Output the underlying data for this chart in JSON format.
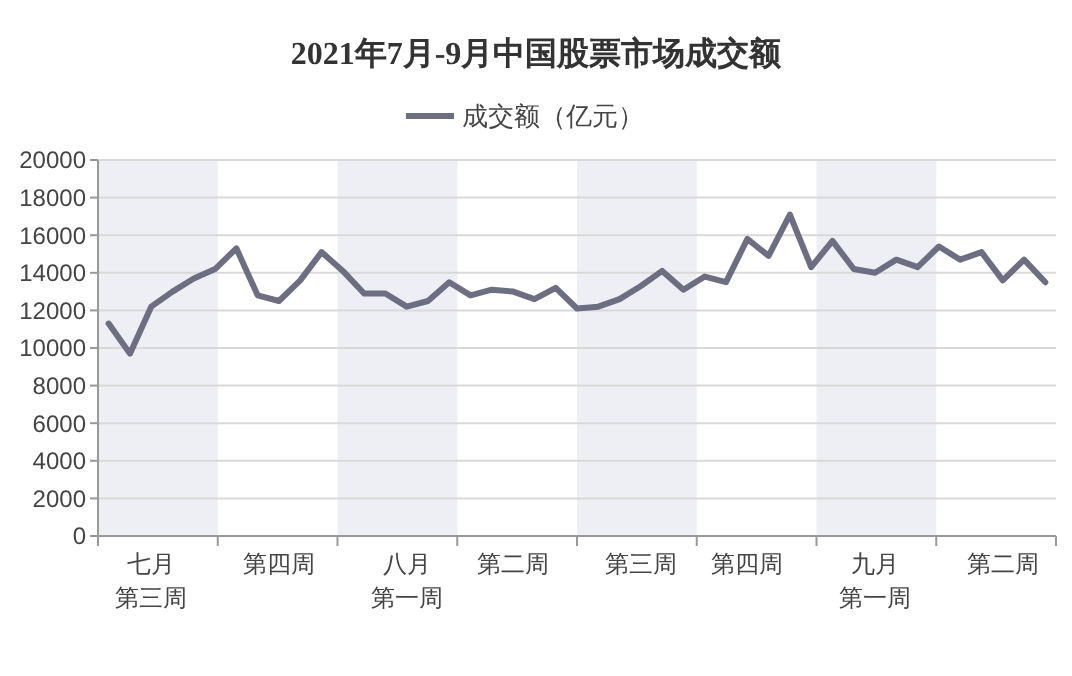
{
  "chart_data": {
    "type": "line",
    "title": "2021年7月-9月中国股票市场成交额",
    "legend": "top",
    "grid": "y",
    "marker": "none",
    "line_style": "solid",
    "categories": [
      null,
      null,
      "七月第三周",
      null,
      null,
      null,
      null,
      null,
      "第四周",
      null,
      null,
      null,
      null,
      null,
      "八月第一周",
      null,
      null,
      null,
      null,
      "第二周",
      null,
      null,
      null,
      null,
      null,
      "第三周",
      null,
      null,
      null,
      null,
      "第四周",
      null,
      null,
      null,
      null,
      null,
      "九月第一周",
      null,
      null,
      null,
      null,
      null,
      "第二周",
      null,
      null
    ],
    "series": [
      {
        "name": "成交额（亿元）",
        "color": "#6e6e82",
        "values": [
          11300,
          9700,
          12200,
          13000,
          13700,
          14200,
          15300,
          12800,
          12500,
          13600,
          15100,
          14100,
          12900,
          12900,
          12200,
          12500,
          13500,
          12800,
          13100,
          13000,
          12600,
          13200,
          12100,
          12200,
          12600,
          13300,
          14100,
          13100,
          13800,
          13500,
          15800,
          14900,
          17100,
          14300,
          15700,
          14200,
          14000,
          14700,
          14300,
          15400,
          14700,
          15100,
          13600,
          14700,
          13500
        ]
      }
    ],
    "ylim": [
      0,
      20000
    ],
    "yticks": [
      0,
      2000,
      4000,
      6000,
      8000,
      10000,
      12000,
      14000,
      16000,
      18000,
      20000
    ]
  }
}
